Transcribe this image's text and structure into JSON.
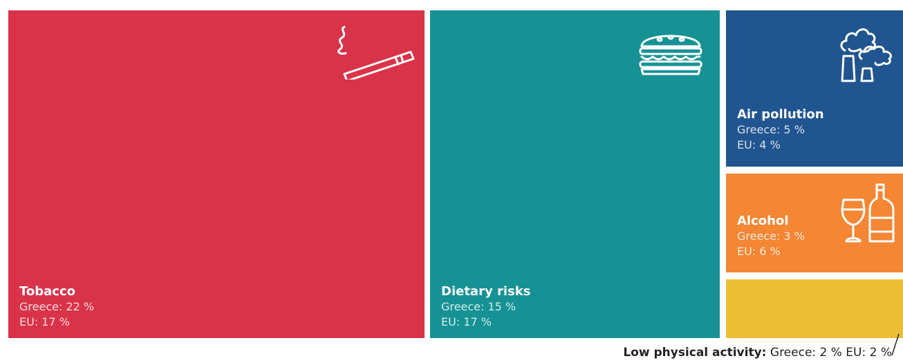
{
  "chart_data": {
    "type": "treemap",
    "series_names": [
      "Greece",
      "EU"
    ],
    "categories": [
      {
        "name": "Tobacco",
        "greece_text": "Greece: 22 %",
        "eu_text": "EU: 17 %",
        "greece": 22,
        "eu": 17,
        "color": "#d93349",
        "icon": "cigarette-icon"
      },
      {
        "name": "Dietary risks",
        "greece_text": "Greece: 15 %",
        "eu_text": "EU: 17 %",
        "greece": 15,
        "eu": 17,
        "color": "#169295",
        "icon": "burger-icon"
      },
      {
        "name": "Air pollution",
        "greece_text": "Greece: 5 %",
        "eu_text": "EU: 4 %",
        "greece": 5,
        "eu": 4,
        "color": "#215590",
        "icon": "factory-icon"
      },
      {
        "name": "Alcohol",
        "greece_text": "Greece: 3 %",
        "eu_text": "EU: 6 %",
        "greece": 3,
        "eu": 6,
        "color": "#f48634",
        "icon": "wine-bottle-icon"
      },
      {
        "name": "Low physical activity",
        "greece_text": "Greece: 2 %",
        "eu_text": "EU: 2 %",
        "greece": 2,
        "eu": 2,
        "color": "#ebbe36",
        "icon": ""
      }
    ],
    "footnote": {
      "name": "Low physical activity:",
      "values": "Greece: 2 % EU: 2 %"
    }
  }
}
